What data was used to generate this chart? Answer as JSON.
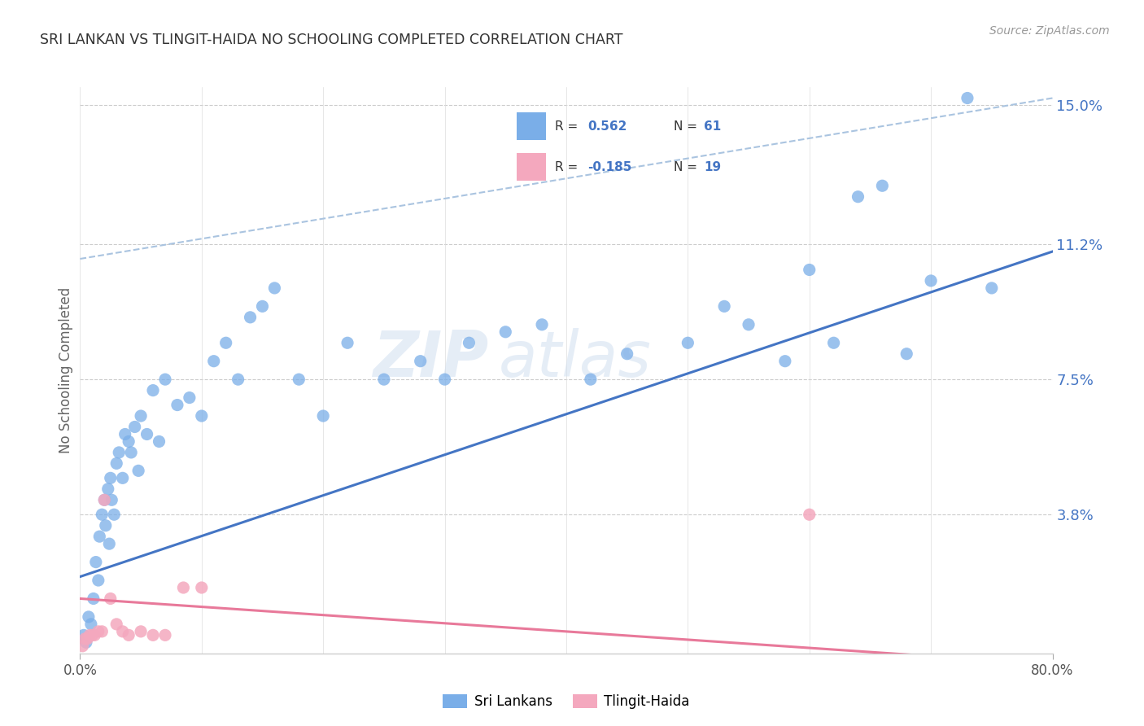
{
  "title": "SRI LANKAN VS TLINGIT-HAIDA NO SCHOOLING COMPLETED CORRELATION CHART",
  "source": "Source: ZipAtlas.com",
  "ylabel_label": "No Schooling Completed",
  "watermark_zip": "ZIP",
  "watermark_atlas": "atlas",
  "blue_color": "#7aaee8",
  "pink_color": "#f4a8be",
  "blue_line_color": "#4475c4",
  "pink_line_color": "#e8799a",
  "dashed_line_color": "#aac4e0",
  "sri_lankan_x": [
    0.3,
    0.5,
    0.7,
    0.9,
    1.1,
    1.3,
    1.5,
    1.6,
    1.8,
    2.0,
    2.1,
    2.3,
    2.4,
    2.5,
    2.6,
    2.8,
    3.0,
    3.2,
    3.5,
    3.7,
    4.0,
    4.2,
    4.5,
    4.8,
    5.0,
    5.5,
    6.0,
    6.5,
    7.0,
    8.0,
    9.0,
    10.0,
    11.0,
    12.0,
    13.0,
    14.0,
    15.0,
    16.0,
    18.0,
    20.0,
    22.0,
    25.0,
    28.0,
    30.0,
    32.0,
    35.0,
    38.0,
    42.0,
    45.0,
    50.0,
    53.0,
    55.0,
    58.0,
    60.0,
    62.0,
    64.0,
    66.0,
    68.0,
    70.0,
    73.0,
    75.0
  ],
  "sri_lankan_y": [
    0.5,
    0.3,
    1.0,
    0.8,
    1.5,
    2.5,
    2.0,
    3.2,
    3.8,
    4.2,
    3.5,
    4.5,
    3.0,
    4.8,
    4.2,
    3.8,
    5.2,
    5.5,
    4.8,
    6.0,
    5.8,
    5.5,
    6.2,
    5.0,
    6.5,
    6.0,
    7.2,
    5.8,
    7.5,
    6.8,
    7.0,
    6.5,
    8.0,
    8.5,
    7.5,
    9.2,
    9.5,
    10.0,
    7.5,
    6.5,
    8.5,
    7.5,
    8.0,
    7.5,
    8.5,
    8.8,
    9.0,
    7.5,
    8.2,
    8.5,
    9.5,
    9.0,
    8.0,
    10.5,
    8.5,
    12.5,
    12.8,
    8.2,
    10.2,
    15.2,
    10.0
  ],
  "tlingit_x": [
    0.2,
    0.4,
    0.6,
    0.8,
    1.0,
    1.2,
    1.5,
    1.8,
    2.0,
    2.5,
    3.0,
    3.5,
    4.0,
    5.0,
    6.0,
    7.0,
    8.5,
    10.0,
    60.0
  ],
  "tlingit_y": [
    0.2,
    0.4,
    0.4,
    0.5,
    0.5,
    0.5,
    0.6,
    0.6,
    4.2,
    1.5,
    0.8,
    0.6,
    0.5,
    0.6,
    0.5,
    0.5,
    1.8,
    1.8,
    3.8
  ],
  "xlim": [
    0,
    80
  ],
  "ylim": [
    0,
    15.5
  ],
  "sri_line_x0": 0,
  "sri_line_y0": 2.1,
  "sri_line_x1": 80,
  "sri_line_y1": 11.0,
  "th_line_x0": 0,
  "th_line_y0": 1.5,
  "th_line_x1": 80,
  "th_line_y1": -0.3,
  "dash_line_x0": 0,
  "dash_line_y0": 10.8,
  "dash_line_x1": 80,
  "dash_line_y1": 15.2
}
